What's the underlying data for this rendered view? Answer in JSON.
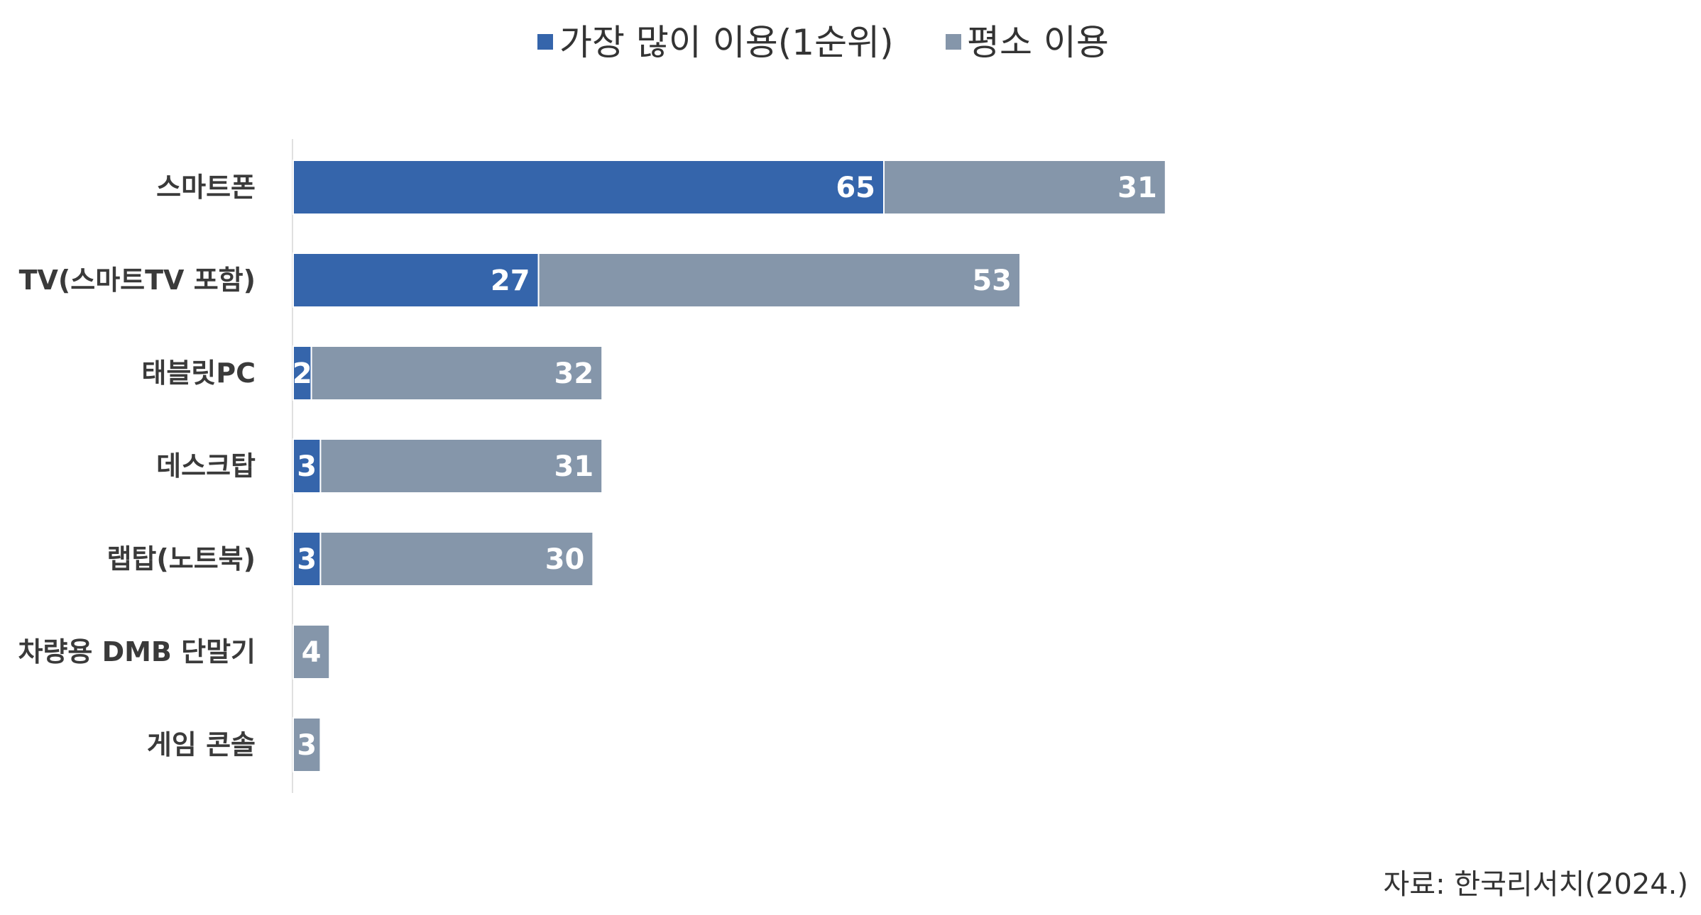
{
  "chart_data": {
    "type": "bar",
    "orientation": "horizontal",
    "stacked": true,
    "categories": [
      "스마트폰",
      "TV(스마트TV 포함)",
      "태블릿PC",
      "데스크탑",
      "랩탑(노트북)",
      "차량용 DMB 단말기",
      "게임 콘솔"
    ],
    "series": [
      {
        "name": "가장 많이 이용(1순위)",
        "color": "#3565ab",
        "values": [
          65,
          27,
          2,
          3,
          3,
          null,
          null
        ]
      },
      {
        "name": "평소 이용",
        "color": "#8596aa",
        "values": [
          31,
          53,
          32,
          31,
          30,
          4,
          3
        ]
      }
    ],
    "xlim": [
      0,
      96
    ],
    "legend_position": "top-center",
    "grid": false
  },
  "source": "자료: 한국리서치(2024.)"
}
